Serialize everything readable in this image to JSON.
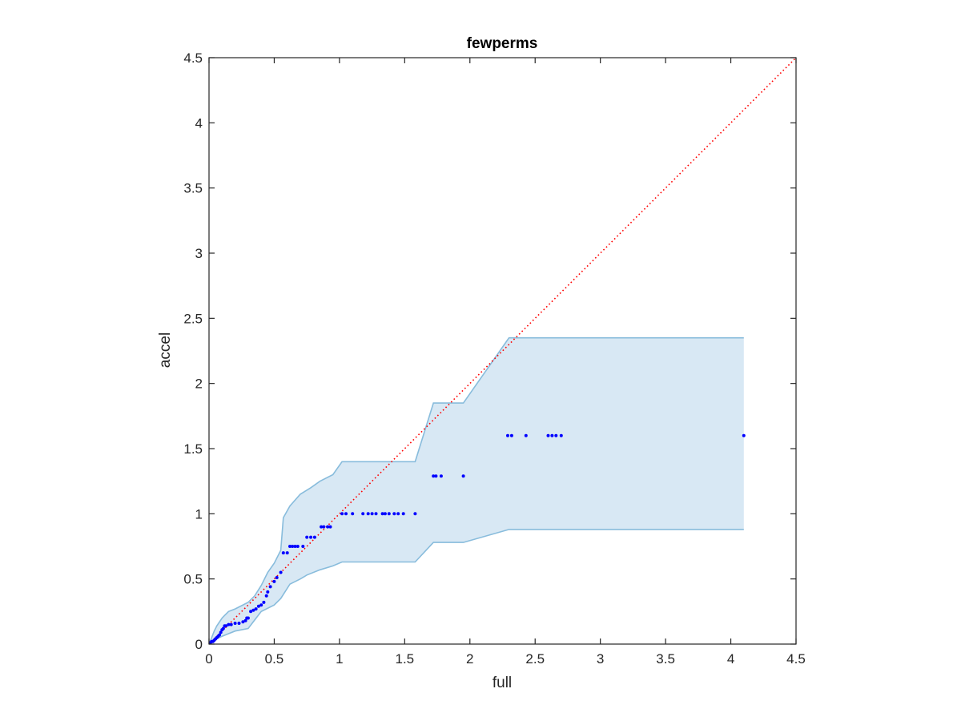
{
  "chart_data": {
    "type": "scatter",
    "title": "fewperms",
    "xlabel": "full",
    "ylabel": "accel",
    "xlim": [
      0,
      4.5
    ],
    "ylim": [
      0,
      4.5
    ],
    "xticks": [
      "0",
      "0.5",
      "1",
      "1.5",
      "2",
      "2.5",
      "3",
      "3.5",
      "4",
      "4.5"
    ],
    "yticks": [
      "0",
      "0.5",
      "1",
      "1.5",
      "2",
      "2.5",
      "3",
      "3.5",
      "4",
      "4.5"
    ],
    "grid": false,
    "colors": {
      "points": "#0000ff",
      "band_fill": "#d8e8f4",
      "band_edge": "#88bcdc",
      "reference_line": "#ff0000",
      "axes": "#262626"
    },
    "reference_line": {
      "style": "dotted",
      "from": [
        0,
        0
      ],
      "to": [
        4.5,
        4.5
      ]
    },
    "band": {
      "upper": [
        [
          0,
          0
        ],
        [
          0.02,
          0.05
        ],
        [
          0.04,
          0.1
        ],
        [
          0.06,
          0.14
        ],
        [
          0.1,
          0.2
        ],
        [
          0.12,
          0.22
        ],
        [
          0.15,
          0.25
        ],
        [
          0.2,
          0.27
        ],
        [
          0.3,
          0.32
        ],
        [
          0.35,
          0.37
        ],
        [
          0.4,
          0.45
        ],
        [
          0.45,
          0.55
        ],
        [
          0.5,
          0.62
        ],
        [
          0.55,
          0.72
        ],
        [
          0.57,
          0.97
        ],
        [
          0.62,
          1.06
        ],
        [
          0.7,
          1.15
        ],
        [
          0.78,
          1.2
        ],
        [
          0.85,
          1.25
        ],
        [
          0.95,
          1.3
        ],
        [
          1.02,
          1.4
        ],
        [
          1.58,
          1.4
        ],
        [
          1.72,
          1.85
        ],
        [
          1.95,
          1.85
        ],
        [
          2.3,
          2.35
        ],
        [
          4.1,
          2.35
        ]
      ],
      "lower": [
        [
          4.1,
          0.88
        ],
        [
          2.3,
          0.88
        ],
        [
          1.95,
          0.78
        ],
        [
          1.72,
          0.78
        ],
        [
          1.58,
          0.63
        ],
        [
          1.02,
          0.63
        ],
        [
          0.95,
          0.6
        ],
        [
          0.85,
          0.57
        ],
        [
          0.75,
          0.53
        ],
        [
          0.7,
          0.5
        ],
        [
          0.62,
          0.46
        ],
        [
          0.55,
          0.35
        ],
        [
          0.5,
          0.3
        ],
        [
          0.4,
          0.25
        ],
        [
          0.3,
          0.12
        ],
        [
          0.2,
          0.1
        ],
        [
          0.15,
          0.08
        ],
        [
          0.1,
          0.06
        ],
        [
          0.06,
          0.04
        ],
        [
          0.04,
          0.02
        ],
        [
          0.02,
          0.01
        ],
        [
          0,
          0
        ]
      ]
    },
    "points": [
      [
        0.01,
        0.01
      ],
      [
        0.02,
        0.02
      ],
      [
        0.03,
        0.02
      ],
      [
        0.04,
        0.03
      ],
      [
        0.05,
        0.04
      ],
      [
        0.06,
        0.05
      ],
      [
        0.07,
        0.06
      ],
      [
        0.08,
        0.07
      ],
      [
        0.09,
        0.09
      ],
      [
        0.1,
        0.11
      ],
      [
        0.11,
        0.12
      ],
      [
        0.12,
        0.14
      ],
      [
        0.13,
        0.14
      ],
      [
        0.15,
        0.15
      ],
      [
        0.17,
        0.15
      ],
      [
        0.2,
        0.16
      ],
      [
        0.23,
        0.16
      ],
      [
        0.26,
        0.17
      ],
      [
        0.28,
        0.18
      ],
      [
        0.29,
        0.2
      ],
      [
        0.3,
        0.2
      ],
      [
        0.32,
        0.25
      ],
      [
        0.34,
        0.26
      ],
      [
        0.36,
        0.27
      ],
      [
        0.38,
        0.29
      ],
      [
        0.4,
        0.3
      ],
      [
        0.42,
        0.32
      ],
      [
        0.44,
        0.37
      ],
      [
        0.45,
        0.4
      ],
      [
        0.47,
        0.44
      ],
      [
        0.5,
        0.48
      ],
      [
        0.52,
        0.51
      ],
      [
        0.55,
        0.55
      ],
      [
        0.57,
        0.7
      ],
      [
        0.6,
        0.7
      ],
      [
        0.62,
        0.75
      ],
      [
        0.64,
        0.75
      ],
      [
        0.66,
        0.75
      ],
      [
        0.68,
        0.75
      ],
      [
        0.72,
        0.75
      ],
      [
        0.75,
        0.82
      ],
      [
        0.78,
        0.82
      ],
      [
        0.81,
        0.82
      ],
      [
        0.86,
        0.9
      ],
      [
        0.88,
        0.9
      ],
      [
        0.91,
        0.9
      ],
      [
        0.93,
        0.9
      ],
      [
        1.02,
        1
      ],
      [
        1.05,
        1
      ],
      [
        1.1,
        1
      ],
      [
        1.18,
        1
      ],
      [
        1.22,
        1
      ],
      [
        1.25,
        1
      ],
      [
        1.28,
        1
      ],
      [
        1.33,
        1
      ],
      [
        1.35,
        1
      ],
      [
        1.38,
        1
      ],
      [
        1.42,
        1
      ],
      [
        1.45,
        1
      ],
      [
        1.49,
        1
      ],
      [
        1.58,
        1
      ],
      [
        1.72,
        1.29
      ],
      [
        1.74,
        1.29
      ],
      [
        1.78,
        1.29
      ],
      [
        1.95,
        1.29
      ],
      [
        2.29,
        1.6
      ],
      [
        2.32,
        1.6
      ],
      [
        2.43,
        1.6
      ],
      [
        2.6,
        1.6
      ],
      [
        2.63,
        1.6
      ],
      [
        2.66,
        1.6
      ],
      [
        2.7,
        1.6
      ],
      [
        4.1,
        1.6
      ]
    ]
  }
}
